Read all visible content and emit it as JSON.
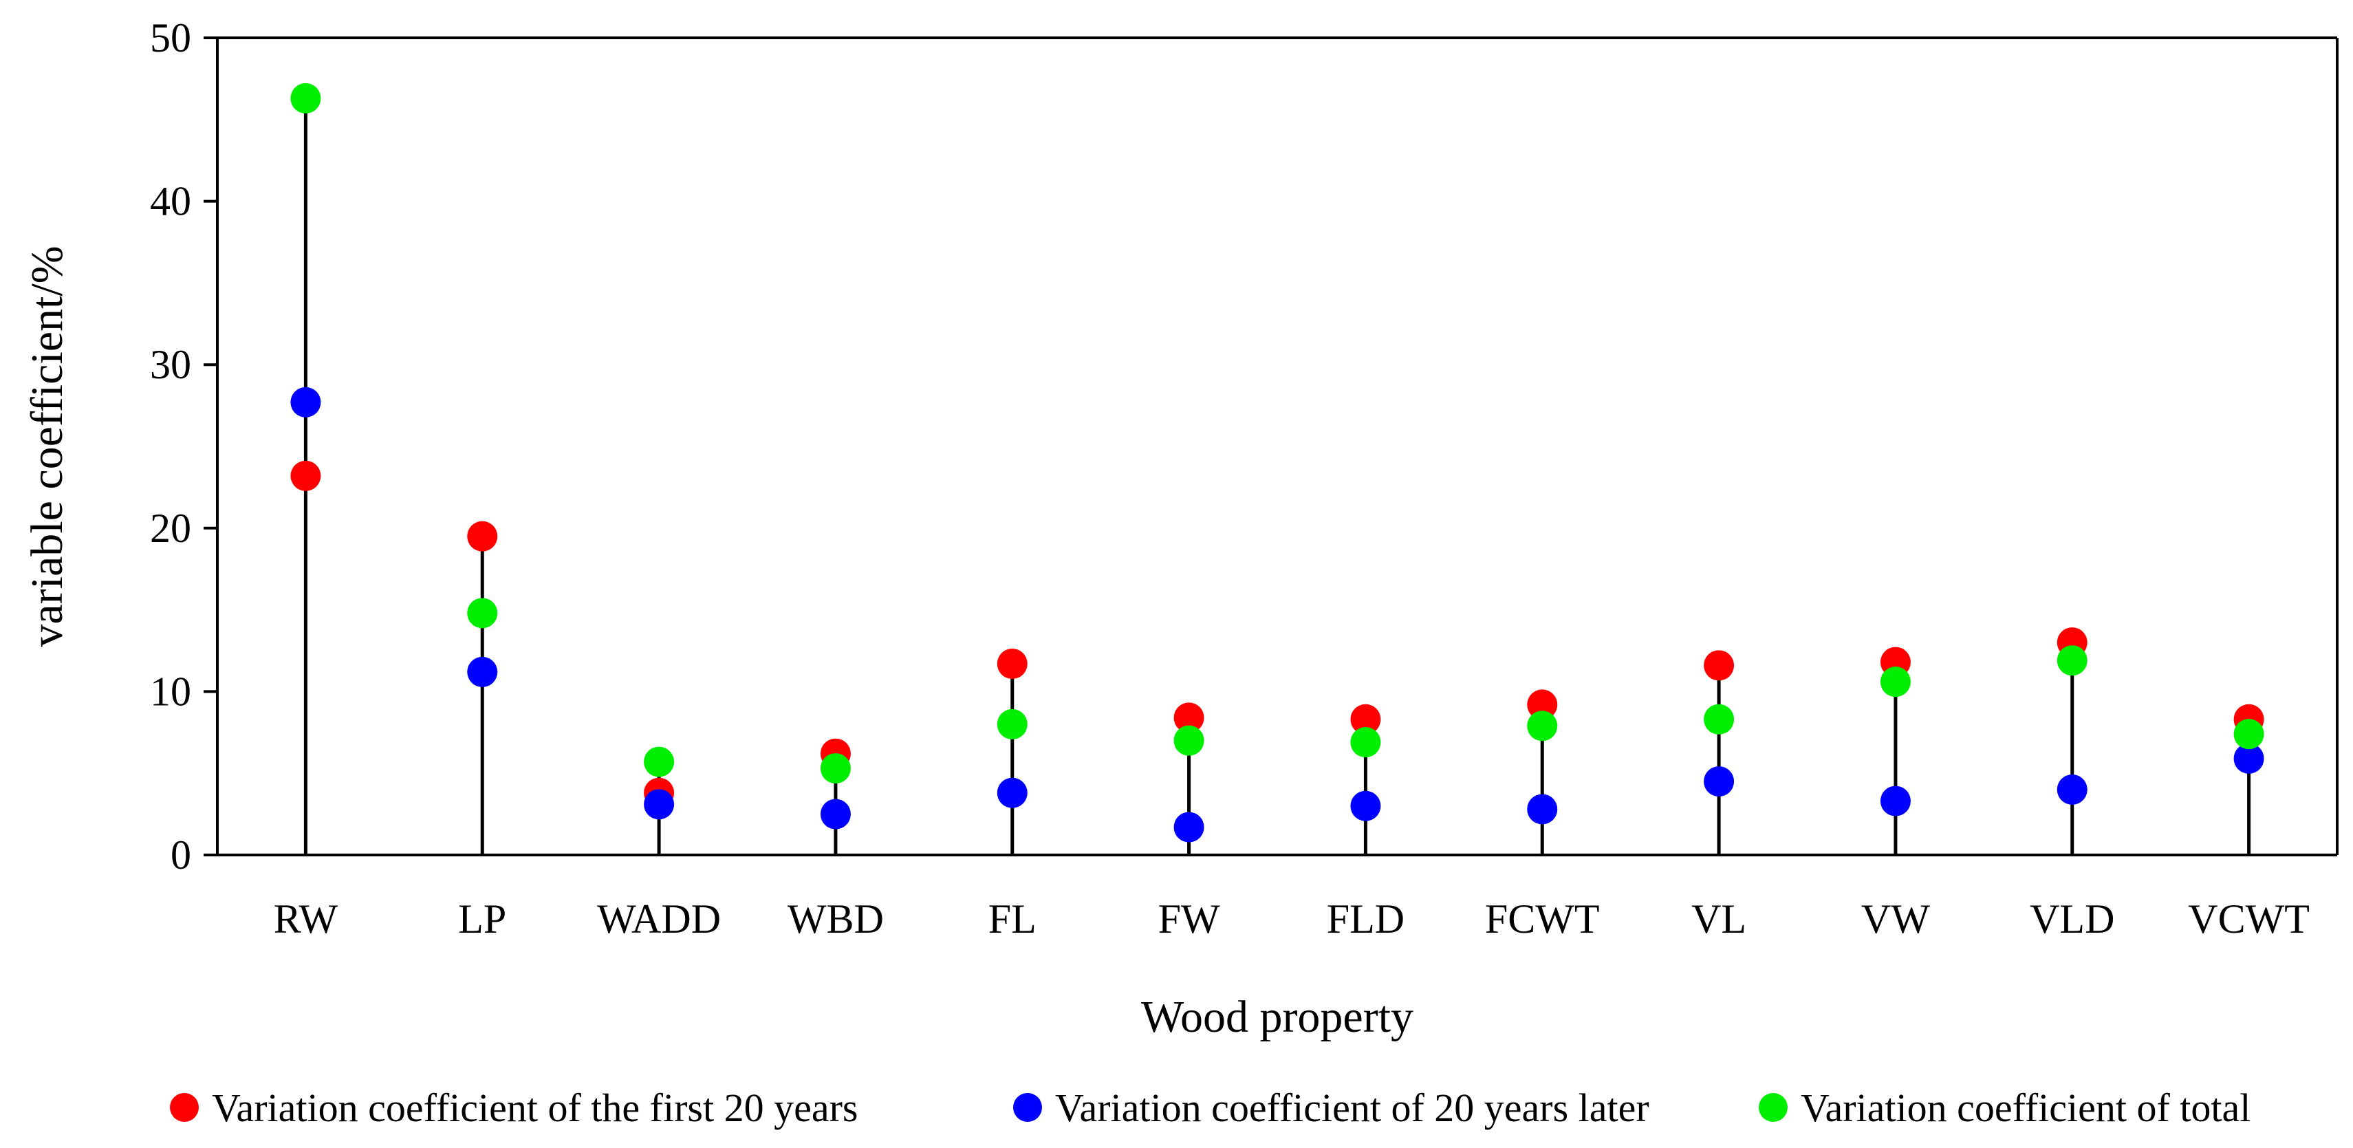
{
  "chart_data": {
    "type": "scatter",
    "style": "lollipop",
    "title": "",
    "xlabel": "Wood property",
    "ylabel": "variable coefficient/%",
    "ylim": [
      0,
      50
    ],
    "yticks": [
      0,
      10,
      20,
      30,
      40,
      50
    ],
    "grid": false,
    "legend_position": "bottom",
    "categories": [
      "RW",
      "LP",
      "WADD",
      "WBD",
      "FL",
      "FW",
      "FLD",
      "FCWT",
      "VL",
      "VW",
      "VLD",
      "VCWT"
    ],
    "series": [
      {
        "name": "Variation coefficient of the first 20 years",
        "color": "#ff0000",
        "values": [
          23.2,
          19.5,
          3.8,
          6.2,
          11.7,
          8.4,
          8.3,
          9.2,
          11.6,
          11.8,
          13.0,
          8.3
        ]
      },
      {
        "name": "Variation coefficient of 20 years later",
        "color": "#0000ff",
        "values": [
          27.7,
          11.2,
          3.1,
          2.5,
          3.8,
          1.7,
          3.0,
          2.8,
          4.5,
          3.3,
          4.0,
          5.9
        ]
      },
      {
        "name": "Variation coefficient of total",
        "color": "#00ee00",
        "values": [
          46.3,
          14.8,
          5.7,
          5.3,
          8.0,
          7.0,
          6.9,
          7.9,
          8.3,
          10.6,
          11.9,
          7.4
        ]
      }
    ]
  }
}
